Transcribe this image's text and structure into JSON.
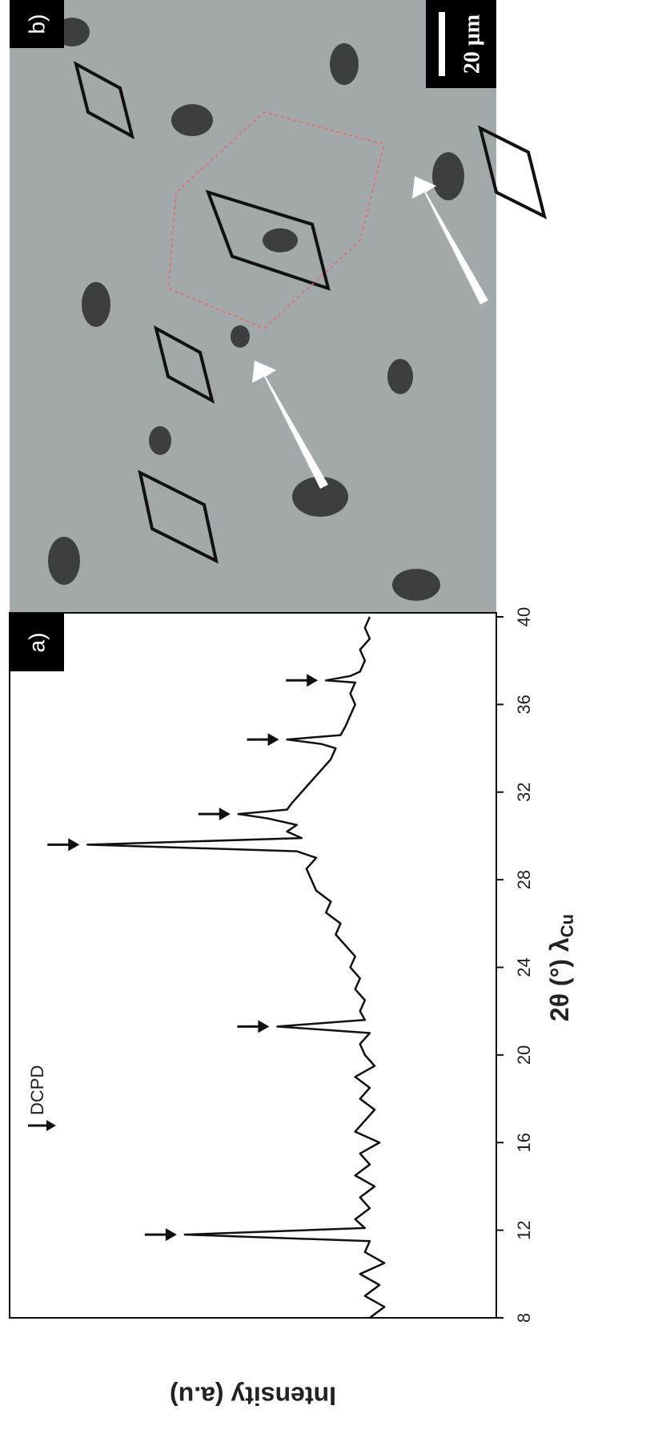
{
  "chart_data": {
    "type": "line",
    "panel_label": "a)",
    "xlabel": "2θ (°) λ",
    "xlabel_sub": "Cu",
    "ylabel": "Intensity (a.u)",
    "xlim": [
      8,
      40
    ],
    "xticks": [
      8,
      12,
      16,
      20,
      24,
      28,
      32,
      36,
      40
    ],
    "ylim": [
      0,
      100
    ],
    "x": [
      8,
      8.5,
      9,
      9.5,
      10,
      10.5,
      11,
      11.5,
      11.8,
      12.1,
      12.5,
      13,
      13.5,
      14,
      14.5,
      15,
      15.5,
      16,
      16.5,
      17,
      17.5,
      18,
      18.5,
      19,
      19.5,
      20,
      20.5,
      21,
      21.3,
      21.6,
      22,
      22.5,
      23,
      23.5,
      24,
      24.5,
      25,
      25.5,
      26,
      26.5,
      27,
      27.5,
      28,
      28.5,
      29,
      29.3,
      29.6,
      29.9,
      30.2,
      30.5,
      30.8,
      31,
      31.2,
      31.5,
      32,
      32.5,
      33,
      33.5,
      34,
      34.2,
      34.4,
      34.6,
      35,
      35.5,
      36,
      36.5,
      37,
      37.1,
      37.3,
      37.5,
      38,
      38.5,
      39,
      39.5,
      40
    ],
    "series": [
      {
        "name": "DCPD",
        "color": "#111111",
        "values": [
          26,
          23,
          27,
          24,
          28,
          23,
          27,
          26,
          64,
          27,
          29,
          26,
          28,
          25,
          29,
          26,
          28,
          24,
          29,
          27,
          25,
          28,
          26,
          29,
          25,
          27,
          28,
          26,
          45,
          27,
          28,
          27,
          29,
          28,
          30,
          29,
          31,
          33,
          32,
          35,
          34,
          37,
          38,
          39,
          37,
          41,
          84,
          40,
          43,
          41,
          47,
          53,
          43,
          42,
          40,
          38,
          36,
          34,
          33,
          36,
          43,
          32,
          31,
          30,
          29,
          30,
          29,
          35,
          30,
          28,
          27,
          28,
          26,
          27,
          26
        ],
        "peak_markers": [
          11.8,
          21.3,
          29.6,
          31,
          34.4,
          37.1
        ]
      }
    ]
  },
  "image_panel": {
    "label": "b)",
    "scale_bar": "20 μm"
  }
}
